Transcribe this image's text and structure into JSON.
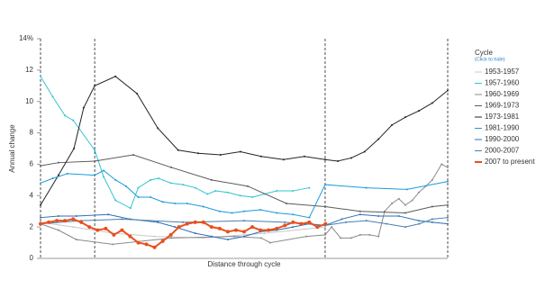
{
  "chart_data": {
    "type": "line",
    "y_label": "Annual change",
    "x_label": "Distance through cycle",
    "legend_title": "Cycle",
    "legend_note": "(Click to hide)",
    "xlim": [
      0,
      100
    ],
    "ylim": [
      0,
      14
    ],
    "yticks": [
      0,
      2,
      4,
      6,
      8,
      10,
      12,
      {
        "value": 14,
        "label": "14%"
      }
    ],
    "vlines": [
      0,
      13.3,
      69.9,
      100
    ],
    "series": [
      {
        "name": "1953-1957",
        "color": "#c8c8c8",
        "x": [
          0,
          8,
          18,
          28,
          40,
          55,
          70
        ],
        "values": [
          2.3,
          2.0,
          1.6,
          1.4,
          1.3,
          1.6,
          2.0
        ]
      },
      {
        "name": "1957-1960",
        "color": "#35c4cf",
        "x": [
          0,
          3,
          6,
          8,
          13.3,
          15.5,
          18.4,
          22.1,
          24,
          27,
          29,
          32,
          35,
          38,
          41,
          43,
          46,
          49,
          52,
          55,
          58,
          62,
          66
        ],
        "values": [
          11.6,
          10.3,
          9.1,
          8.8,
          6.9,
          5.2,
          3.7,
          3.2,
          4.5,
          5.0,
          5.1,
          4.8,
          4.7,
          4.5,
          4.1,
          4.3,
          4.2,
          4.0,
          3.9,
          4.1,
          4.3,
          4.3,
          4.5
        ]
      },
      {
        "name": "1960-1969",
        "color": "#8a8a8a",
        "x": [
          0,
          4.4,
          8.8,
          17.7,
          32.1,
          47.6,
          54.2,
          56.4,
          65.3,
          69.9,
          71.5,
          73.7,
          76.3,
          78.5,
          80.8,
          83,
          84.5,
          86.3,
          88,
          89.6,
          91.3,
          92.9,
          94.6,
          96.2,
          98.5,
          100
        ],
        "values": [
          2.2,
          1.8,
          1.2,
          0.9,
          1.3,
          1.4,
          1.3,
          1.0,
          1.4,
          1.5,
          2.0,
          1.3,
          1.3,
          1.5,
          1.5,
          1.4,
          3.0,
          3.5,
          3.8,
          3.4,
          3.7,
          4.2,
          4.6,
          5.0,
          6.0,
          5.8
        ]
      },
      {
        "name": "1969-1973",
        "color": "#5a5a5a",
        "x": [
          0,
          4.4,
          13.3,
          22.8,
          32.1,
          42,
          50.9,
          60.4,
          69.9,
          78.5,
          89.6,
          96.2,
          100
        ],
        "values": [
          5.9,
          6.1,
          6.2,
          6.6,
          5.8,
          5.0,
          4.6,
          3.5,
          3.3,
          3.0,
          2.9,
          3.3,
          3.4
        ]
      },
      {
        "name": "1973-1981",
        "color": "#232323",
        "x": [
          0,
          4.4,
          8.2,
          10.6,
          13.3,
          18.4,
          23.7,
          28.8,
          33.8,
          38.7,
          44.2,
          49.1,
          54.2,
          59.7,
          64.8,
          69.9,
          73,
          76.3,
          79.6,
          83,
          86.3,
          89.6,
          92.9,
          96.2,
          100
        ],
        "values": [
          3.4,
          5.3,
          7.0,
          9.6,
          11.0,
          11.6,
          10.5,
          8.3,
          6.9,
          6.7,
          6.6,
          6.8,
          6.5,
          6.3,
          6.5,
          6.3,
          6.2,
          6.4,
          6.8,
          7.6,
          8.5,
          9.0,
          9.4,
          9.9,
          10.7
        ]
      },
      {
        "name": "1981-1990",
        "color": "#1f9ad8",
        "x": [
          0,
          3,
          6.6,
          13.3,
          15.5,
          18.4,
          21,
          24,
          27,
          30,
          33,
          36,
          40,
          44,
          47,
          50,
          54,
          58,
          62,
          66,
          69.9,
          80,
          90,
          100
        ],
        "values": [
          4.8,
          5.1,
          5.4,
          5.3,
          5.6,
          5.0,
          4.6,
          3.9,
          3.9,
          3.6,
          3.5,
          3.5,
          3.3,
          3.0,
          2.9,
          3.0,
          3.1,
          2.9,
          2.8,
          2.6,
          4.7,
          4.5,
          4.4,
          4.9
        ]
      },
      {
        "name": "1990-2000",
        "color": "#2d6fb5",
        "x": [
          0,
          4.4,
          8.8,
          16.6,
          22,
          28.8,
          33,
          38,
          42,
          46,
          50,
          54,
          58,
          62,
          66,
          69.9,
          74,
          78.5,
          83,
          88,
          92.9,
          96.2,
          100
        ],
        "values": [
          2.6,
          2.7,
          2.7,
          2.8,
          2.5,
          2.3,
          2.0,
          1.6,
          1.4,
          1.2,
          1.4,
          1.7,
          1.8,
          2.0,
          2.2,
          2.1,
          2.5,
          2.8,
          2.7,
          2.7,
          2.4,
          2.3,
          2.2
        ]
      },
      {
        "name": "2000-2007",
        "color": "#4a7fb0",
        "x": [
          0,
          10,
          20,
          35,
          50,
          60,
          69.9,
          75,
          80,
          85,
          89.6,
          93,
          96.2,
          100
        ],
        "values": [
          2.2,
          2.4,
          2.5,
          2.3,
          2.4,
          2.3,
          2.1,
          2.3,
          2.4,
          2.2,
          2.0,
          2.2,
          2.5,
          2.6
        ]
      },
      {
        "name": "2007 to present",
        "color": "#e8501c",
        "x": [
          0,
          2,
          4,
          6,
          8,
          10,
          12,
          14,
          16,
          18,
          20,
          22,
          24,
          26,
          28,
          30,
          32,
          34,
          36,
          38,
          40,
          42,
          44,
          46,
          48,
          50,
          52,
          54,
          56,
          58,
          60,
          62,
          64,
          66,
          68,
          70
        ],
        "values": [
          2.2,
          2.3,
          2.4,
          2.4,
          2.5,
          2.3,
          2.0,
          1.8,
          1.9,
          1.5,
          1.8,
          1.4,
          1.0,
          0.9,
          0.7,
          1.1,
          1.5,
          2.0,
          2.2,
          2.3,
          2.3,
          2.0,
          1.9,
          1.7,
          1.8,
          1.7,
          2.0,
          1.8,
          1.8,
          1.9,
          2.1,
          2.3,
          2.2,
          2.3,
          2.0,
          2.2
        ]
      }
    ]
  }
}
